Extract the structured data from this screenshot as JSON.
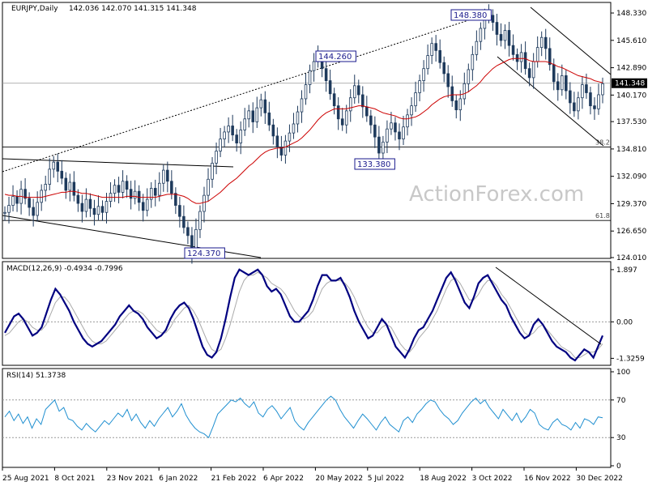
{
  "header": {
    "symbol": "EURJPY,Daily",
    "ohlc": "142.036 142.070 141.315 141.348"
  },
  "watermark": "ActionForex.com",
  "current_price_label": "141.348",
  "colors": {
    "candle": "#1e3a5c",
    "ma": "#cc0000",
    "macd": "#000080",
    "signal": "#aaaaaa",
    "rsi": "#1f8fd0",
    "price_box_bg": "#000000",
    "label_box_border": "#1a1a8c"
  },
  "chart_data": [
    {
      "type": "line",
      "title": "EURJPY,Daily",
      "subtitle": "142.036 142.070 141.315 141.348",
      "price_ticks": [
        "148.330",
        "145.610",
        "142.890",
        "140.170",
        "137.530",
        "134.810",
        "132.090",
        "129.370",
        "126.650",
        "124.010"
      ],
      "ylim": [
        124.01,
        149.3
      ],
      "x_tick_labels": [
        "25 Aug 2021",
        "8 Oct 2021",
        "23 Nov 2021",
        "6 Jan 2022",
        "21 Feb 2022",
        "6 Apr 2022",
        "20 May 2022",
        "5 Jul 2022",
        "18 Aug 2022",
        "3 Oct 2022",
        "16 Nov 2022",
        "30 Dec 2022"
      ],
      "annotations": [
        {
          "text": "148.380",
          "at": "high"
        },
        {
          "text": "144.260",
          "at": "high"
        },
        {
          "text": "133.380",
          "at": "low"
        },
        {
          "text": "124.370",
          "at": "low"
        }
      ],
      "fib_levels": [
        {
          "label": "38.2",
          "value": 135.0
        },
        {
          "label": "61.8",
          "value": 127.7
        }
      ],
      "horizontal_lines": [
        141.348
      ],
      "series": [
        {
          "values": [
            128.5,
            129.2,
            130.1,
            129.4,
            130.8,
            129.9,
            129.0,
            128.2,
            129.5,
            130.7,
            131.3,
            132.8,
            133.5,
            132.6,
            131.9,
            130.7,
            131.5,
            130.2,
            129.4,
            128.6,
            129.8,
            128.9,
            128.3,
            129.1,
            128.5,
            129.6,
            130.4,
            131.2,
            130.5,
            131.6,
            130.8,
            129.9,
            130.6,
            129.5,
            128.7,
            129.8,
            130.9,
            130.2,
            131.4,
            132.7,
            131.6,
            130.4,
            129.2,
            128.1,
            127.0,
            126.2,
            124.5,
            126.8,
            128.6,
            130.2,
            131.8,
            133.4,
            134.6,
            135.8,
            136.5,
            137.1,
            136.2,
            135.4,
            136.7,
            137.8,
            138.6,
            137.5,
            138.9,
            139.7,
            138.4,
            137.2,
            136.1,
            135.0,
            134.2,
            135.6,
            136.4,
            137.3,
            138.5,
            139.8,
            141.2,
            142.6,
            143.5,
            144.0,
            142.8,
            141.6,
            140.3,
            139.1,
            137.8,
            137.2,
            138.6,
            139.9,
            141.1,
            140.2,
            139.0,
            138.1,
            137.2,
            136.0,
            134.4,
            135.5,
            136.8,
            137.4,
            136.5,
            135.8,
            137.0,
            138.2,
            139.1,
            140.4,
            141.6,
            142.8,
            144.1,
            145.3,
            144.6,
            143.4,
            142.3,
            141.0,
            139.6,
            138.7,
            139.8,
            141.3,
            142.7,
            144.2,
            145.5,
            146.8,
            147.9,
            148.1,
            147.4,
            146.2,
            145.6,
            146.6,
            145.1,
            144.2,
            143.5,
            144.4,
            142.8,
            141.9,
            143.5,
            144.9,
            145.9,
            144.8,
            143.2,
            141.5,
            140.7,
            142.1,
            140.6,
            139.4,
            138.6,
            139.9,
            141.2,
            140.4,
            139.1,
            138.8,
            140.2,
            141.3
          ]
        },
        {
          "values": [
            130.3,
            130.2,
            130.2,
            130.1,
            130.1,
            130.0,
            130.0,
            130.0,
            130.0,
            130.0,
            130.1,
            130.2,
            130.3,
            130.4,
            130.5,
            130.5,
            130.6,
            130.6,
            130.5,
            130.4,
            130.4,
            130.3,
            130.2,
            130.1,
            130.0,
            130.0,
            130.0,
            130.0,
            130.0,
            130.0,
            130.1,
            130.1,
            130.1,
            130.0,
            130.0,
            130.0,
            130.0,
            130.0,
            130.1,
            130.2,
            130.3,
            130.3,
            130.3,
            130.2,
            130.1,
            129.9,
            129.6,
            129.4,
            129.4,
            129.5,
            129.6,
            129.9,
            130.2,
            130.5,
            130.9,
            131.3,
            131.6,
            131.9,
            132.3,
            132.7,
            133.1,
            133.4,
            133.8,
            134.2,
            134.5,
            134.7,
            134.8,
            134.9,
            134.9,
            135.0,
            135.2,
            135.4,
            135.6,
            135.9,
            136.3,
            136.7,
            137.2,
            137.7,
            138.1,
            138.4,
            138.6,
            138.8,
            138.8,
            138.8,
            138.8,
            138.9,
            139.0,
            139.1,
            139.1,
            139.0,
            138.9,
            138.8,
            138.6,
            138.4,
            138.3,
            138.2,
            138.1,
            137.9,
            137.8,
            137.8,
            137.9,
            138.0,
            138.2,
            138.5,
            138.8,
            139.2,
            139.5,
            139.8,
            140.0,
            140.1,
            140.2,
            140.2,
            140.2,
            140.3,
            140.5,
            140.8,
            141.1,
            141.5,
            142.0,
            142.4,
            142.8,
            143.1,
            143.3,
            143.5,
            143.7,
            143.8,
            143.8,
            143.8,
            143.8,
            143.6,
            143.5,
            143.5,
            143.5,
            143.5,
            143.4,
            143.2,
            143.0,
            142.9,
            142.7,
            142.5,
            142.3,
            142.1,
            142.0,
            141.9,
            141.8,
            141.6,
            141.5,
            141.4
          ]
        }
      ]
    },
    {
      "type": "line",
      "title": "MACD(12,26,9) -0.4934 -0.7996",
      "y_ticks": [
        "1.897",
        "0.00",
        "-1.3259"
      ],
      "ylim": [
        -1.55,
        2.1
      ],
      "series": [
        {
          "values": [
            -0.4,
            -0.1,
            0.2,
            0.3,
            0.1,
            -0.2,
            -0.5,
            -0.4,
            -0.2,
            0.3,
            0.8,
            1.2,
            1.0,
            0.7,
            0.4,
            0.0,
            -0.3,
            -0.6,
            -0.8,
            -0.9,
            -0.8,
            -0.7,
            -0.5,
            -0.3,
            -0.1,
            0.2,
            0.4,
            0.6,
            0.4,
            0.3,
            0.1,
            -0.2,
            -0.4,
            -0.6,
            -0.5,
            -0.3,
            0.1,
            0.4,
            0.6,
            0.7,
            0.5,
            0.1,
            -0.4,
            -0.9,
            -1.2,
            -1.3,
            -1.1,
            -0.6,
            0.1,
            0.9,
            1.6,
            1.9,
            1.8,
            1.7,
            1.8,
            1.9,
            1.7,
            1.3,
            1.1,
            1.2,
            1.0,
            0.6,
            0.2,
            0.0,
            0.0,
            0.2,
            0.4,
            0.8,
            1.3,
            1.7,
            1.7,
            1.5,
            1.5,
            1.6,
            1.3,
            0.9,
            0.4,
            0.0,
            -0.3,
            -0.6,
            -0.5,
            -0.2,
            0.1,
            -0.1,
            -0.5,
            -0.9,
            -1.1,
            -1.3,
            -1.0,
            -0.6,
            -0.3,
            -0.2,
            0.1,
            0.4,
            0.8,
            1.2,
            1.6,
            1.8,
            1.5,
            1.1,
            0.7,
            0.5,
            0.9,
            1.4,
            1.6,
            1.7,
            1.4,
            1.1,
            0.8,
            0.6,
            0.2,
            -0.1,
            -0.4,
            -0.6,
            -0.5,
            -0.1,
            0.1,
            -0.1,
            -0.4,
            -0.7,
            -0.9,
            -1.0,
            -1.1,
            -1.3,
            -1.4,
            -1.2,
            -1.0,
            -1.1,
            -1.3,
            -0.9,
            -0.5
          ]
        },
        {
          "values": [
            -0.5,
            -0.4,
            -0.2,
            0.0,
            0.1,
            0.0,
            -0.2,
            -0.3,
            -0.3,
            -0.1,
            0.3,
            0.7,
            0.9,
            0.9,
            0.7,
            0.4,
            0.1,
            -0.2,
            -0.5,
            -0.7,
            -0.8,
            -0.8,
            -0.7,
            -0.5,
            -0.3,
            -0.1,
            0.1,
            0.3,
            0.4,
            0.4,
            0.3,
            0.1,
            -0.1,
            -0.3,
            -0.4,
            -0.4,
            -0.2,
            0.1,
            0.3,
            0.5,
            0.6,
            0.4,
            0.1,
            -0.3,
            -0.7,
            -1.0,
            -1.1,
            -1.0,
            -0.6,
            -0.1,
            0.5,
            1.1,
            1.5,
            1.7,
            1.7,
            1.8,
            1.7,
            1.6,
            1.4,
            1.3,
            1.2,
            1.0,
            0.7,
            0.4,
            0.2,
            0.1,
            0.2,
            0.4,
            0.8,
            1.2,
            1.4,
            1.5,
            1.5,
            1.5,
            1.4,
            1.2,
            0.9,
            0.5,
            0.1,
            -0.2,
            -0.4,
            -0.4,
            -0.2,
            -0.1,
            -0.2,
            -0.5,
            -0.8,
            -1.0,
            -1.1,
            -0.9,
            -0.6,
            -0.4,
            -0.2,
            0.1,
            0.4,
            0.8,
            1.2,
            1.5,
            1.6,
            1.4,
            1.1,
            0.8,
            0.8,
            1.0,
            1.3,
            1.5,
            1.5,
            1.3,
            1.0,
            0.8,
            0.5,
            0.2,
            -0.1,
            -0.4,
            -0.5,
            -0.4,
            -0.2,
            -0.1,
            -0.3,
            -0.5,
            -0.7,
            -0.9,
            -1.0,
            -1.1,
            -1.3,
            -1.3,
            -1.2,
            -1.1,
            -1.1,
            -1.0,
            -0.8
          ]
        }
      ]
    },
    {
      "type": "line",
      "title": "RSI(14) 51.3738",
      "y_ticks": [
        "100",
        "70",
        "30",
        "0"
      ],
      "ylim": [
        0,
        100
      ],
      "series": [
        {
          "values": [
            52,
            58,
            48,
            55,
            45,
            52,
            40,
            50,
            44,
            60,
            65,
            70,
            58,
            62,
            50,
            48,
            42,
            38,
            45,
            40,
            36,
            42,
            48,
            44,
            50,
            56,
            52,
            60,
            48,
            55,
            46,
            40,
            48,
            42,
            50,
            56,
            62,
            52,
            58,
            66,
            54,
            46,
            40,
            36,
            34,
            30,
            42,
            55,
            60,
            65,
            70,
            68,
            72,
            66,
            62,
            68,
            56,
            52,
            60,
            64,
            58,
            50,
            56,
            62,
            48,
            42,
            38,
            46,
            52,
            58,
            64,
            70,
            74,
            70,
            60,
            52,
            46,
            40,
            48,
            55,
            50,
            44,
            38,
            46,
            52,
            44,
            40,
            36,
            48,
            52,
            46,
            55,
            60,
            66,
            70,
            68,
            60,
            54,
            50,
            44,
            48,
            56,
            62,
            68,
            72,
            66,
            70,
            62,
            56,
            50,
            60,
            54,
            48,
            56,
            46,
            52,
            60,
            56,
            44,
            40,
            38,
            46,
            50,
            44,
            42,
            38,
            46,
            40,
            50,
            48,
            44,
            52,
            51
          ]
        }
      ]
    }
  ]
}
